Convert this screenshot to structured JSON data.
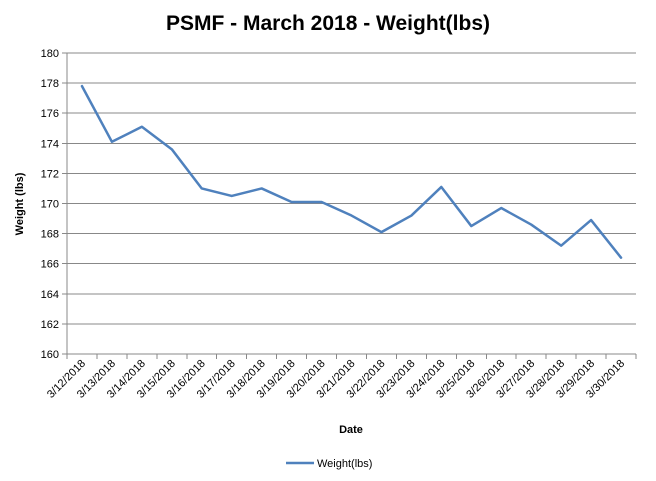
{
  "chart_data": {
    "type": "line",
    "title": "PSMF - March 2018 - Weight(lbs)",
    "xlabel": "Date",
    "ylabel": "Weight (lbs)",
    "ylim": [
      160,
      180
    ],
    "ytick_step": 2,
    "grid": true,
    "legend_position": "bottom",
    "line_color": "#4F81BD",
    "categories": [
      "3/12/2018",
      "3/13/2018",
      "3/14/2018",
      "3/15/2018",
      "3/16/2018",
      "3/17/2018",
      "3/18/2018",
      "3/19/2018",
      "3/20/2018",
      "3/21/2018",
      "3/22/2018",
      "3/23/2018",
      "3/24/2018",
      "3/25/2018",
      "3/26/2018",
      "3/27/2018",
      "3/28/2018",
      "3/29/2018",
      "3/30/2018"
    ],
    "series": [
      {
        "name": "Weight(lbs)",
        "values": [
          177.8,
          174.1,
          175.1,
          173.6,
          171.0,
          170.5,
          171.0,
          170.1,
          170.1,
          169.2,
          168.1,
          169.2,
          171.1,
          168.5,
          169.7,
          168.6,
          167.2,
          168.9,
          166.4
        ]
      }
    ]
  }
}
